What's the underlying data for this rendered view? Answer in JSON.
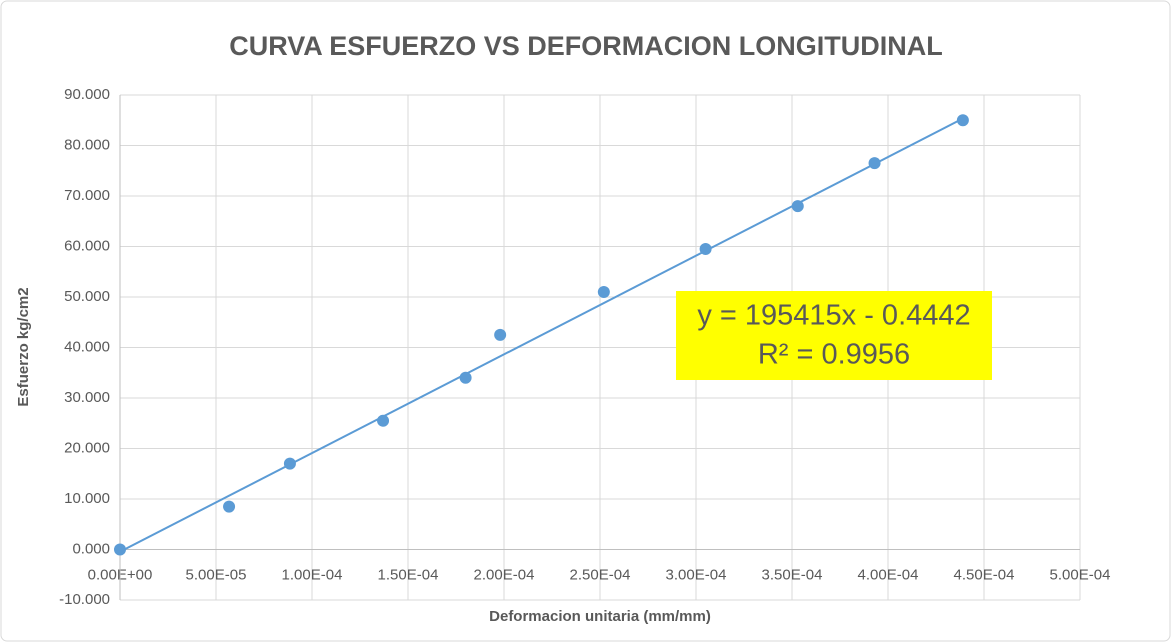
{
  "chart_data": {
    "type": "scatter",
    "title": "CURVA ESFUERZO VS DEFORMACION LONGITUDINAL",
    "x_label": "Deformacion unitaria (mm/mm)",
    "y_label": "Esfuerzo kg/cm2",
    "series": [
      {
        "name": "Esfuerzo",
        "color": "#5b9bd5",
        "x": [
          0,
          5.68e-05,
          8.85e-05,
          0.000137,
          0.00018,
          0.000198,
          0.000252,
          0.000305,
          0.000353,
          0.000393,
          0.000439
        ],
        "values": [
          0,
          8.5,
          17,
          25.5,
          34,
          42.5,
          51,
          59.5,
          68,
          76.5,
          85
        ]
      }
    ],
    "trendline": {
      "slope": 195415,
      "intercept": -0.4442,
      "color": "#5b9bd5"
    },
    "annotation": {
      "equation": "y = 195415x - 0.4442",
      "r2": "R² = 0.9956",
      "background": "#ffff00"
    },
    "xlim": [
      0,
      0.0005
    ],
    "ylim": [
      -10,
      90
    ],
    "xticks": [
      {
        "value": 0,
        "label": "0.00E+00"
      },
      {
        "value": 5e-05,
        "label": "5.00E-05"
      },
      {
        "value": 0.0001,
        "label": "1.00E-04"
      },
      {
        "value": 0.00015,
        "label": "1.50E-04"
      },
      {
        "value": 0.0002,
        "label": "2.00E-04"
      },
      {
        "value": 0.00025,
        "label": "2.50E-04"
      },
      {
        "value": 0.0003,
        "label": "3.00E-04"
      },
      {
        "value": 0.00035,
        "label": "3.50E-04"
      },
      {
        "value": 0.0004,
        "label": "4.00E-04"
      },
      {
        "value": 0.00045,
        "label": "4.50E-04"
      },
      {
        "value": 0.0005,
        "label": "5.00E-04"
      }
    ],
    "yticks": [
      {
        "value": -10,
        "label": "-10.000"
      },
      {
        "value": 0,
        "label": "0.000"
      },
      {
        "value": 10,
        "label": "10.000"
      },
      {
        "value": 20,
        "label": "20.000"
      },
      {
        "value": 30,
        "label": "30.000"
      },
      {
        "value": 40,
        "label": "40.000"
      },
      {
        "value": 50,
        "label": "50.000"
      },
      {
        "value": 60,
        "label": "60.000"
      },
      {
        "value": 70,
        "label": "70.000"
      },
      {
        "value": 80,
        "label": "80.000"
      },
      {
        "value": 90,
        "label": "90.000"
      }
    ],
    "grid": true
  }
}
